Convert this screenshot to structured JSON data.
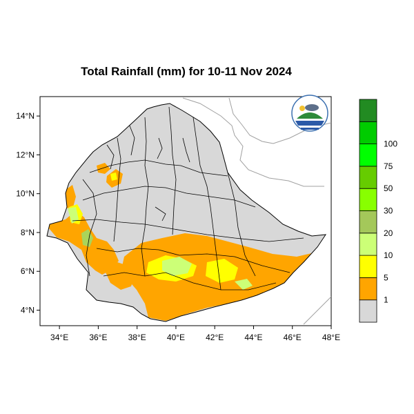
{
  "title": "Total Rainfall (mm) for 10-11 Nov 2024",
  "map": {
    "lon_range": [
      33,
      48
    ],
    "lat_range": [
      3.2,
      15.0
    ],
    "x_ticks": [
      {
        "value": 34,
        "label": "34°E"
      },
      {
        "value": 36,
        "label": "36°E"
      },
      {
        "value": 38,
        "label": "38°E"
      },
      {
        "value": 40,
        "label": "40°E"
      },
      {
        "value": 42,
        "label": "42°E"
      },
      {
        "value": 44,
        "label": "44°E"
      },
      {
        "value": 46,
        "label": "46°E"
      },
      {
        "value": 48,
        "label": "48°E"
      }
    ],
    "y_ticks": [
      {
        "value": 4,
        "label": "4°N"
      },
      {
        "value": 6,
        "label": "6°N"
      },
      {
        "value": 8,
        "label": "8°N"
      },
      {
        "value": 10,
        "label": "10°N"
      },
      {
        "value": 12,
        "label": "12°N"
      },
      {
        "value": 14,
        "label": "14°N"
      }
    ],
    "colors": {
      "country_fill": "#d8d8d8",
      "neighbor_lines": "#a0a0a0",
      "boundaries": "#000000",
      "below_1": "#d8d8d8",
      "r1_5": "#ffa500",
      "r5_10": "#ffff00",
      "r10_20": "#ccff77",
      "r20_30": "#aad45a"
    }
  },
  "legend": {
    "thresholds": [
      "1",
      "5",
      "10",
      "20",
      "30",
      "50",
      "75",
      "100"
    ],
    "colors": [
      "#d8d8d8",
      "#ffa500",
      "#ffff00",
      "#ccff77",
      "#a4c85a",
      "#88ff00",
      "#66cc00",
      "#00ff00",
      "#00cc00",
      "#228b22"
    ]
  },
  "logo": {
    "name": "ethiopian-meteorology-institute-logo"
  }
}
